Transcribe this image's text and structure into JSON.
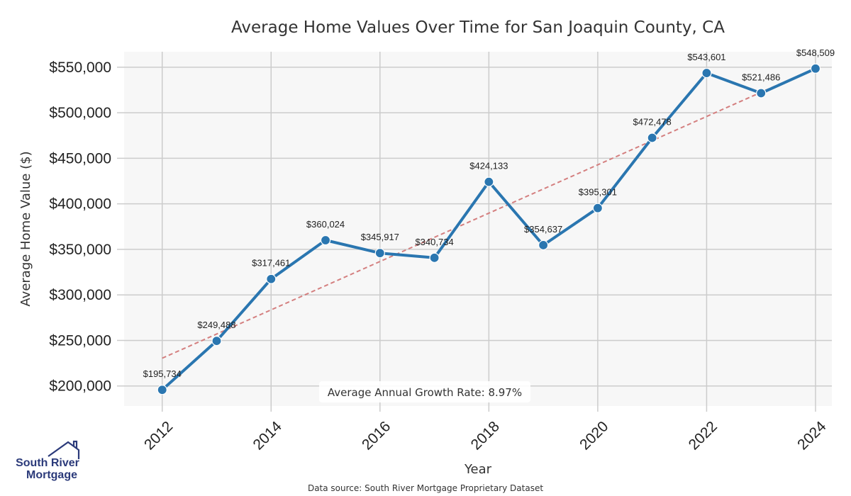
{
  "chart_data": {
    "type": "line",
    "title": "Average Home Values Over Time for San Joaquin County, CA",
    "xlabel": "Year",
    "ylabel": "Average Home Value ($)",
    "x": [
      2012,
      2013,
      2014,
      2015,
      2016,
      2017,
      2018,
      2019,
      2020,
      2021,
      2022,
      2023,
      2024
    ],
    "values": [
      195734,
      249488,
      317461,
      360024,
      345917,
      340734,
      424133,
      354637,
      395301,
      472478,
      543601,
      521486,
      548509
    ],
    "labels": [
      "$195,734",
      "$249,488",
      "$317,461",
      "$360,024",
      "$345,917",
      "$340,734",
      "$424,133",
      "$354,637",
      "$395,301",
      "$472,478",
      "$543,601",
      "$521,486",
      "$548,509"
    ],
    "xticks": [
      "2012",
      "2014",
      "2016",
      "2018",
      "2020",
      "2022",
      "2024"
    ],
    "xtick_values": [
      2012,
      2014,
      2016,
      2018,
      2020,
      2022,
      2024
    ],
    "yticks": [
      "$200,000",
      "$250,000",
      "$300,000",
      "$350,000",
      "$400,000",
      "$450,000",
      "$500,000",
      "$550,000"
    ],
    "ytick_values": [
      200000,
      250000,
      300000,
      350000,
      400000,
      450000,
      500000,
      550000
    ],
    "xlim": [
      2011.3,
      2024.3
    ],
    "ylim": [
      178000,
      567000
    ],
    "trend": {
      "start": [
        2012,
        230500
      ],
      "end": [
        2024,
        549000
      ]
    },
    "grid": true,
    "annotation": "Average Annual Growth Rate: 8.97%",
    "colors": {
      "line": "#2a76b0",
      "trend": "#d47f7f",
      "plot_bg": "#f7f7f7",
      "grid": "#cccccc"
    }
  },
  "footer": {
    "source": "Data source: South River Mortgage Proprietary Dataset"
  },
  "logo": {
    "line1": "South River",
    "line2": "Mortgage",
    "color": "#2b3a7a",
    "icon": "house-icon"
  }
}
